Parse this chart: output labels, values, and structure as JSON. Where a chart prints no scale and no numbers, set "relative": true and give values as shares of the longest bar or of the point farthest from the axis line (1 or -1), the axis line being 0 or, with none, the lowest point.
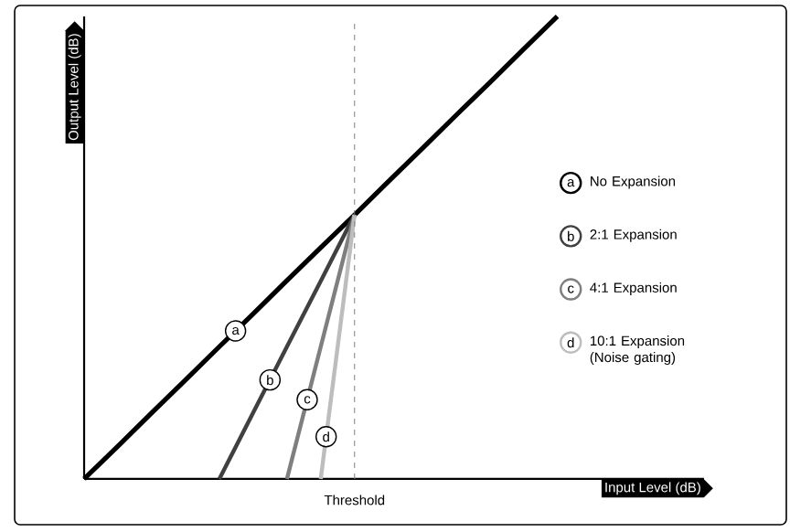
{
  "chart_data": {
    "type": "line",
    "relative": true,
    "xlabel": "Input Level (dB)",
    "ylabel": "Output Level (dB)",
    "legend": "right",
    "categories": [
      null,
      null,
      null,
      null,
      null,
      null,
      null,
      null,
      null,
      null,
      null,
      null,
      null,
      null,
      null
    ],
    "series": [
      {
        "name": "No Expansion",
        "color": "#000000",
        "values": [
          0,
          0.071,
          0.143,
          0.214,
          0.286,
          0.357,
          0.429,
          0.5,
          0.571,
          0.643,
          0.714,
          0.786,
          0.857,
          0.929,
          1
        ]
      },
      {
        "name": "2:1 Expansion",
        "color": "#404040",
        "values": [
          null,
          null,
          null,
          null,
          0,
          0.143,
          0.286,
          0.428,
          0.571,
          null,
          null,
          null,
          null,
          null,
          null
        ]
      },
      {
        "name": "4:1 Expansion",
        "color": "#7f7f7f",
        "values": [
          null,
          null,
          null,
          null,
          null,
          null,
          0,
          0.286,
          0.571,
          null,
          null,
          null,
          null,
          null,
          null
        ]
      },
      {
        "name": "10:1 Expansion (Noise gating)",
        "color": "#bdbdbd",
        "values": [
          null,
          null,
          null,
          null,
          null,
          null,
          null,
          0,
          0.571,
          null,
          null,
          null,
          null,
          null,
          null
        ]
      }
    ],
    "annotations": [
      "a",
      "b",
      "c",
      "d",
      "Threshold"
    ]
  }
}
